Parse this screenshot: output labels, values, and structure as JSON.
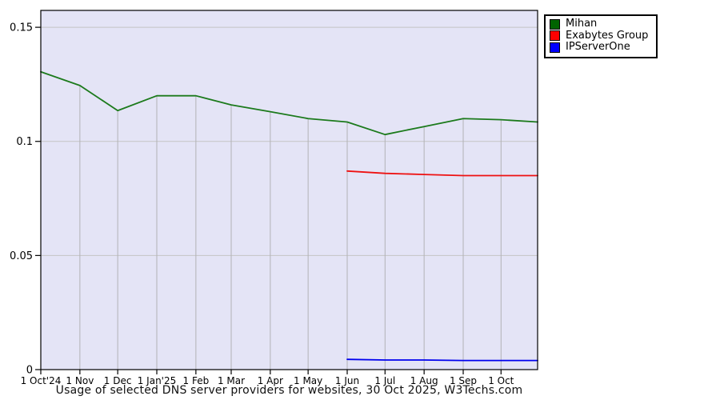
{
  "title": "Usage of selected DNS server providers for websites, 30 Oct 2025, W3Techs.com",
  "legend": {
    "position": "top-right, outside plot",
    "items": [
      {
        "label": "Mihan",
        "color": "#006400"
      },
      {
        "label": "Exabytes Group",
        "color": "#ff0000"
      },
      {
        "label": "IPServerOne",
        "color": "#0000ff"
      }
    ]
  },
  "chart_data": {
    "type": "line",
    "title": "Usage of selected DNS server providers for websites, 30 Oct 2025, W3Techs.com",
    "xlabel": "",
    "ylabel": "",
    "x_tick_labels": [
      "1 Oct'24",
      "1 Nov",
      "1 Dec",
      "1 Jan'25",
      "1 Feb",
      "1 Mar",
      "1 Apr",
      "1 May",
      "1 Jun",
      "1 Jul",
      "1 Aug",
      "1 Sep",
      "1 Oct"
    ],
    "x_tick_days": [
      0,
      31,
      61,
      92,
      123,
      151,
      182,
      212,
      243,
      273,
      304,
      335,
      365
    ],
    "x_range_days": [
      0,
      394
    ],
    "y_ticks": [
      0,
      0.05,
      0.1,
      0.15
    ],
    "y_tick_labels": [
      "0",
      "0.05",
      "0.1",
      "0.15"
    ],
    "ylim": [
      0,
      0.1574
    ],
    "grid": "horizontal gridlines at y ticks; vertical gray drop lines at each month tick from top series down to x-axis",
    "plot_bg": "#e4e4f6",
    "gridline_color": "#c4c4c4",
    "dropline_color": "#b2b2b6",
    "axis_color": "#000000",
    "series": [
      {
        "name": "Mihan",
        "color": "#1c7a1c",
        "x_days": [
          0,
          31,
          61,
          92,
          123,
          151,
          182,
          212,
          243,
          273,
          304,
          335,
          365,
          394
        ],
        "values": [
          0.1305,
          0.1245,
          0.1135,
          0.12,
          0.12,
          0.116,
          0.113,
          0.11,
          0.1085,
          0.103,
          0.1065,
          0.11,
          0.1095,
          0.1085
        ]
      },
      {
        "name": "Exabytes Group",
        "color": "#ee1111",
        "x_days": [
          243,
          273,
          304,
          335,
          365,
          394
        ],
        "values": [
          0.087,
          0.086,
          0.0855,
          0.085,
          0.085,
          0.085
        ]
      },
      {
        "name": "IPServerOne",
        "color": "#0000ee",
        "x_days": [
          243,
          273,
          304,
          335,
          365,
          394
        ],
        "values": [
          0.0045,
          0.0042,
          0.0042,
          0.004,
          0.004,
          0.004
        ]
      }
    ]
  }
}
